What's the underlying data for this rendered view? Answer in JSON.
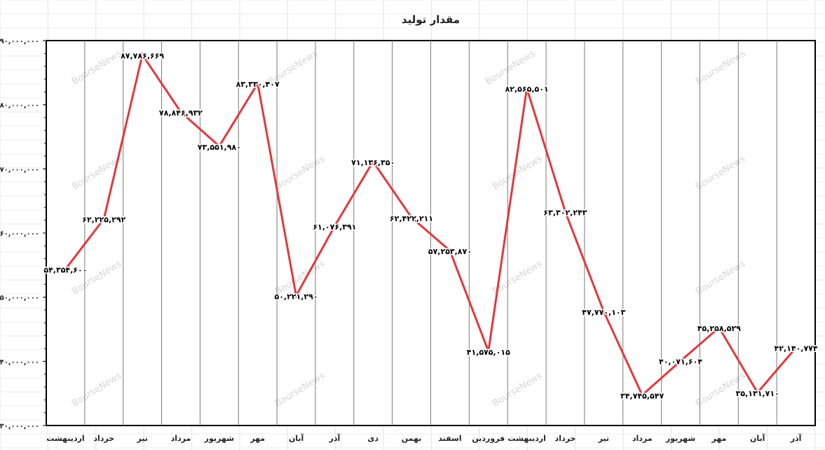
{
  "chart_data": {
    "type": "line",
    "title": "مقدار تولید",
    "xlabel": "",
    "ylabel": "",
    "ylim": [
      30000000,
      90000000
    ],
    "y_tick_labels": [
      "۳۰,۰۰۰,۰۰۰",
      "۴۰,۰۰۰,۰۰۰",
      "۵۰,۰۰۰,۰۰۰",
      "۶۰,۰۰۰,۰۰۰",
      "۷۰,۰۰۰,۰۰۰",
      "۸۰,۰۰۰,۰۰۰",
      "۹۰,۰۰۰,۰۰۰"
    ],
    "categories": [
      "اردیبهشت",
      "خرداد",
      "تیر",
      "مرداد",
      "شهریور",
      "مهر",
      "آبان",
      "آذر",
      "دی",
      "بهمن",
      "اسفند",
      "فروردین",
      "اردیبهشت",
      "خرداد",
      "تیر",
      "مرداد",
      "شهریور",
      "مهر",
      "آبان",
      "آذر"
    ],
    "series": [
      {
        "values": [
          54354600,
          62225292,
          87786669,
          78846932,
          73551980,
          83330407,
          50221290,
          61076391,
          71136350,
          62422211,
          57253870,
          41575015,
          82565501,
          63302243,
          47770103,
          34745547,
          40071604,
          45258529,
          35131710,
          42140774
        ],
        "labels": [
          "۵۴,۳۵۴,۶۰۰",
          "۶۲,۲۲۵,۲۹۲",
          "۸۷,۷۸۶,۶۶۹",
          "۷۸,۸۴۶,۹۳۲",
          "۷۳,۵۵۱,۹۸۰",
          "۸۳,۳۳۰,۴۰۷",
          "۵۰,۲۲۱,۲۹۰",
          "۶۱,۰۷۶,۳۹۱",
          "۷۱,۱۳۶,۳۵۰",
          "۶۲,۴۲۲,۲۱۱",
          "۵۷,۲۵۳,۸۷۰",
          "۴۱,۵۷۵,۰۱۵",
          "۸۲,۵۶۵,۵۰۱",
          "۶۳,۳۰۲,۲۴۳",
          "۴۷,۷۷۰,۱۰۳",
          "۳۴,۷۴۵,۵۴۷",
          "۴۰,۰۷۱,۶۰۴",
          "۴۵,۲۵۸,۵۲۹",
          "۳۵,۱۳۱,۷۱۰",
          "۴۲,۱۴۰,۷۷۴"
        ],
        "color": "#e0393e"
      }
    ],
    "grid": "vertical",
    "legend": "none",
    "watermark": "BourseNews"
  }
}
